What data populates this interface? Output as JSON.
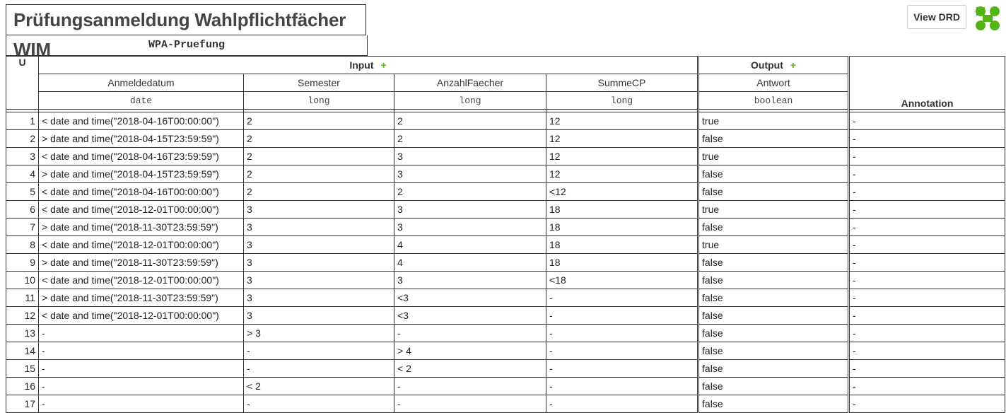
{
  "decision": {
    "title": "Prüfungsanmeldung Wahlpflichtfächer WIM",
    "id": "WPA-Pruefung"
  },
  "toolbar": {
    "view_drd_label": "View DRD",
    "logo_icon": "bpmn-io-logo-icon"
  },
  "table": {
    "hit_policy": "U",
    "input_label": "Input",
    "output_label": "Output",
    "plus_symbol": "+",
    "annotation_label": "Annotation",
    "inputs": [
      {
        "label": "Anmeldedatum",
        "type": "date"
      },
      {
        "label": "Semester",
        "type": "long"
      },
      {
        "label": "AnzahlFaecher",
        "type": "long"
      },
      {
        "label": "SummeCP",
        "type": "long"
      }
    ],
    "outputs": [
      {
        "label": "Antwort",
        "type": "boolean"
      }
    ],
    "rows": [
      {
        "n": "1",
        "c": [
          "< date and time(\"2018-04-16T00:00:00\")",
          "2",
          "2",
          "12",
          "true",
          "-"
        ]
      },
      {
        "n": "2",
        "c": [
          "> date and time(\"2018-04-15T23:59:59\")",
          "2",
          "2",
          "12",
          "false",
          "-"
        ]
      },
      {
        "n": "3",
        "c": [
          "< date and time(\"2018-04-16T23:59:59\")",
          "2",
          "3",
          "12",
          "true",
          "-"
        ]
      },
      {
        "n": "4",
        "c": [
          "> date and time(\"2018-04-15T23:59:59\")",
          "2",
          "3",
          "12",
          "false",
          "-"
        ]
      },
      {
        "n": "5",
        "c": [
          "< date and time(\"2018-04-16T00:00:00\")",
          "2",
          "2",
          "<12",
          "false",
          "-"
        ]
      },
      {
        "n": "6",
        "c": [
          "< date and time(\"2018-12-01T00:00:00\")",
          "3",
          "3",
          "18",
          "true",
          "-"
        ]
      },
      {
        "n": "7",
        "c": [
          "> date and time(\"2018-11-30T23:59:59\")",
          "3",
          "3",
          "18",
          "false",
          "-"
        ]
      },
      {
        "n": "8",
        "c": [
          "< date and time(\"2018-12-01T00:00:00\")",
          "3",
          "4",
          "18",
          "true",
          "-"
        ]
      },
      {
        "n": "9",
        "c": [
          "> date and time(\"2018-11-30T23:59:59\")",
          "3",
          "4",
          "18",
          "false",
          "-"
        ]
      },
      {
        "n": "10",
        "c": [
          "< date and time(\"2018-12-01T00:00:00\")",
          "3",
          "3",
          "<18",
          "false",
          "-"
        ]
      },
      {
        "n": "11",
        "c": [
          "> date and time(\"2018-11-30T23:59:59\")",
          "3",
          "<3",
          "-",
          "false",
          "-"
        ]
      },
      {
        "n": "12",
        "c": [
          "< date and time(\"2018-12-01T00:00:00\")",
          "3",
          "<3",
          "-",
          "false",
          "-"
        ]
      },
      {
        "n": "13",
        "c": [
          "-",
          "> 3",
          "-",
          "-",
          "false",
          "-"
        ]
      },
      {
        "n": "14",
        "c": [
          "-",
          "-",
          "> 4",
          "-",
          "false",
          "-"
        ]
      },
      {
        "n": "15",
        "c": [
          "-",
          "-",
          "< 2",
          "-",
          "false",
          "-"
        ]
      },
      {
        "n": "16",
        "c": [
          "-",
          "< 2",
          "-",
          "-",
          "false",
          "-"
        ]
      },
      {
        "n": "17",
        "c": [
          "-",
          "-",
          "-",
          "-",
          "false",
          "-"
        ]
      }
    ]
  }
}
